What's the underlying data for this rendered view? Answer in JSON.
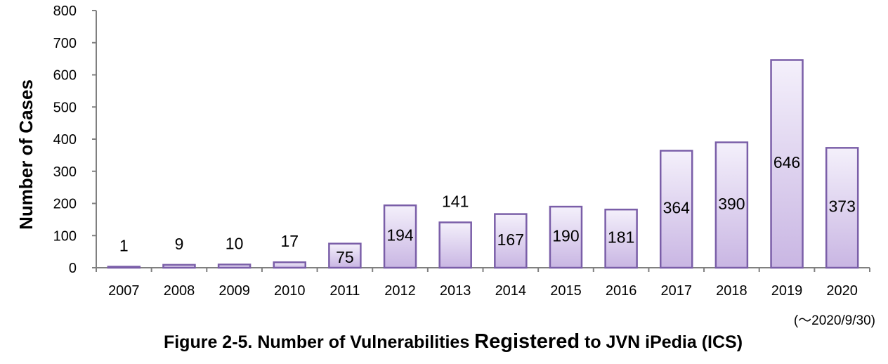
{
  "chart_data": {
    "type": "bar",
    "title": "Figure 2-5. Number of Vulnerabilities Registered to JVN iPedia (ICS)",
    "title_parts": [
      "Figure 2-5. Number of Vulnerabilities ",
      "Registered",
      " to JVN iPedia (ICS)"
    ],
    "note": "(～2020/9/30)",
    "xlabel": "",
    "ylabel": "Number of Cases",
    "categories": [
      "2007",
      "2008",
      "2009",
      "2010",
      "2011",
      "2012",
      "2013",
      "2014",
      "2015",
      "2016",
      "2017",
      "2018",
      "2019",
      "2020"
    ],
    "values": [
      1,
      9,
      10,
      17,
      75,
      194,
      141,
      167,
      190,
      181,
      364,
      390,
      646,
      373
    ],
    "ylim": [
      0,
      800
    ],
    "yticks": [
      0,
      100,
      200,
      300,
      400,
      500,
      600,
      700,
      800
    ],
    "grid": false,
    "bar_fill_top": "#f4f0fb",
    "bar_fill_bottom": "#c9b6e3",
    "bar_stroke": "#7a5ea8",
    "axis_color": "#808080"
  }
}
